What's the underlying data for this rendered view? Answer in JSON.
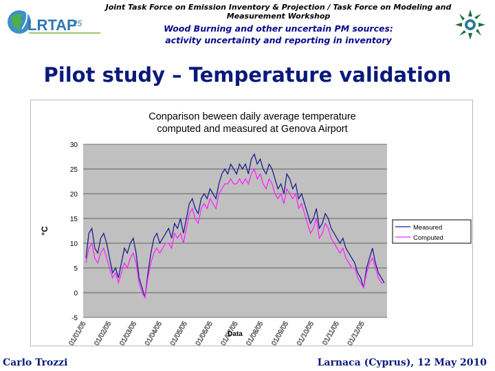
{
  "header": {
    "line1": "Joint Task Force on Emission Inventory & Projection / Task Force on Modeling and",
    "line1b": "Measurement Workshop",
    "line2": "Wood Burning and other uncertain PM sources:",
    "line2b": "activity uncertainty and reporting in inventory",
    "logo_text": "LRTAP",
    "logo_number": "25"
  },
  "slide_title": "Pilot study – Temperature validation",
  "footer": {
    "author": "Carlo Trozzi",
    "place_date": "Larnaca (Cyprus), 12 May 2010"
  },
  "colors": {
    "measured": "#1c1c8c",
    "computed": "#ff22ff",
    "plot_bg": "#c0c0c0",
    "title": "#0a1a7a"
  },
  "chart_data": {
    "type": "line",
    "title_line1": "Conparison beween daily average temperature",
    "title_line2": "computed and measured at Genova Airport",
    "xlabel": "Data",
    "ylabel": "°C",
    "ylim": [
      -5,
      30
    ],
    "yticks": [
      "-5",
      "0",
      "5",
      "10",
      "15",
      "20",
      "25",
      "30"
    ],
    "x_tick_labels": [
      "01/01/05",
      "01/02/05",
      "01/03/05",
      "01/04/05",
      "01/05/05",
      "01/06/05",
      "01/07/05",
      "01/08/05",
      "01/09/05",
      "01/10/05",
      "01/11/05",
      "01/12/05"
    ],
    "legend_position": "right",
    "series": [
      {
        "name": "Measured",
        "values": [
          7,
          12,
          13,
          9,
          8,
          11,
          12,
          10,
          7,
          4,
          5,
          3,
          6,
          9,
          8,
          10,
          11,
          8,
          3,
          1,
          -1,
          4,
          8,
          11,
          12,
          10,
          11,
          12,
          13,
          11,
          14,
          13,
          15,
          12,
          15,
          18,
          19,
          17,
          16,
          19,
          20,
          19,
          21,
          20,
          19,
          22,
          24,
          25,
          24,
          26,
          25,
          24,
          26,
          25,
          26,
          24,
          27,
          28,
          26,
          27,
          25,
          24,
          26,
          25,
          23,
          21,
          22,
          20,
          24,
          23,
          21,
          22,
          19,
          20,
          18,
          16,
          14,
          15,
          17,
          13,
          14,
          16,
          15,
          13,
          12,
          11,
          10,
          11,
          9,
          8,
          7,
          6,
          4,
          3,
          1,
          5,
          7,
          9,
          6,
          4,
          3,
          2
        ]
      },
      {
        "name": "Computed",
        "values": [
          6,
          9,
          10,
          7,
          6,
          8,
          9,
          7,
          5,
          3,
          4,
          2,
          4,
          6,
          5,
          7,
          8,
          6,
          2,
          0,
          -1,
          3,
          6,
          8,
          9,
          8,
          9,
          10,
          10,
          9,
          12,
          11,
          12,
          10,
          13,
          16,
          17,
          15,
          14,
          17,
          18,
          17,
          19,
          18,
          17,
          20,
          21,
          22,
          22,
          23,
          22,
          22,
          23,
          22,
          23,
          22,
          24,
          25,
          23,
          24,
          22,
          21,
          23,
          22,
          20,
          19,
          20,
          18,
          21,
          20,
          19,
          20,
          17,
          18,
          16,
          14,
          12,
          13,
          15,
          11,
          12,
          14,
          13,
          11,
          10,
          9,
          8,
          9,
          7,
          6,
          5,
          5,
          3,
          2,
          1,
          4,
          6,
          7,
          5,
          3,
          2,
          2
        ]
      }
    ]
  }
}
